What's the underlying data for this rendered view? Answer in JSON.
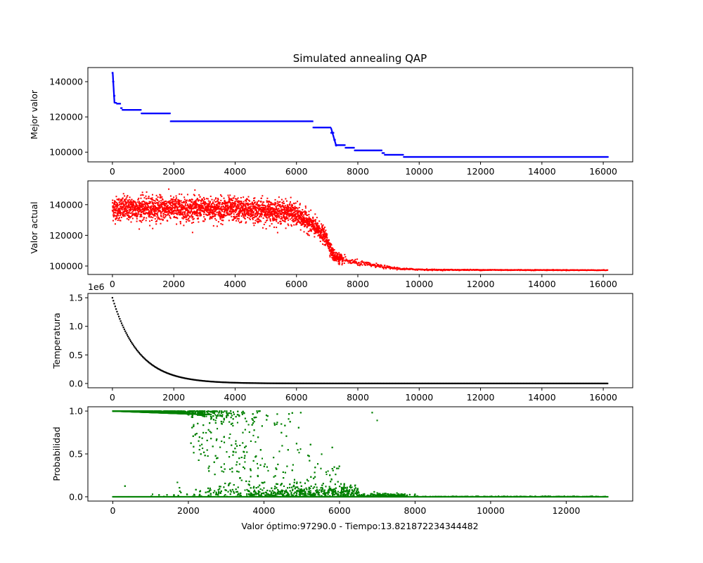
{
  "figure": {
    "title": "Simulated annealing QAP",
    "footer": "Valor óptimo:97290.0 - Tiempo:13.821872234344482"
  },
  "chart_data": [
    {
      "type": "scatter",
      "ylabel": "Mejor valor",
      "color": "#0000ff",
      "xlim": [
        -800,
        16960
      ],
      "ylim": [
        94500,
        148000
      ],
      "xticks": [
        0,
        2000,
        4000,
        6000,
        8000,
        10000,
        12000,
        14000,
        16000
      ],
      "xtick_labels": [
        "0",
        "2000",
        "4000",
        "6000",
        "8000",
        "10000",
        "12000",
        "14000",
        "16000"
      ],
      "yticks": [
        100000,
        120000,
        140000
      ],
      "ytick_labels": [
        "100000",
        "120000",
        "140000"
      ],
      "steps": [
        [
          0,
          145000
        ],
        [
          20,
          140000
        ],
        [
          50,
          132000
        ],
        [
          90,
          128000
        ],
        [
          150,
          127500
        ],
        [
          280,
          125000
        ],
        [
          330,
          124000
        ],
        [
          950,
          122000
        ],
        [
          1900,
          117500
        ],
        [
          6550,
          114000
        ],
        [
          7130,
          111000
        ],
        [
          7230,
          107000
        ],
        [
          7280,
          104000
        ],
        [
          7600,
          102500
        ],
        [
          7900,
          101000
        ],
        [
          8800,
          99500
        ],
        [
          8880,
          98500
        ],
        [
          9500,
          97290
        ],
        [
          16150,
          97290
        ]
      ]
    },
    {
      "type": "scatter",
      "ylabel": "Valor actual",
      "color": "#ff0000",
      "xlim": [
        -800,
        16960
      ],
      "ylim": [
        94500,
        155500
      ],
      "xticks": [
        0,
        2000,
        4000,
        6000,
        8000,
        10000,
        12000,
        14000,
        16000
      ],
      "xtick_labels": [
        "0",
        "2000",
        "4000",
        "6000",
        "8000",
        "10000",
        "12000",
        "14000",
        "16000"
      ],
      "yticks": [
        100000,
        120000,
        140000
      ],
      "ytick_labels": [
        "100000",
        "120000",
        "140000"
      ],
      "envelope": {
        "x": [
          0,
          2000,
          4000,
          5800,
          6300,
          6800,
          7000,
          7200,
          7500,
          8000,
          9000,
          9500,
          10500,
          16150
        ],
        "center": [
          137500,
          137500,
          137000,
          135000,
          130000,
          122000,
          117000,
          107000,
          104000,
          102000,
          99000,
          98000,
          97500,
          97290
        ],
        "spread": [
          7000,
          7000,
          7000,
          6500,
          6000,
          5000,
          4000,
          3500,
          2500,
          1500,
          800,
          500,
          300,
          150
        ]
      }
    },
    {
      "type": "scatter",
      "ylabel": "Temperatura",
      "offset_text": "1e6",
      "color": "#000000",
      "xlim": [
        -800,
        16960
      ],
      "ylim": [
        -0.075,
        1.575
      ],
      "xticks": [
        0,
        2000,
        4000,
        6000,
        8000,
        10000,
        12000,
        14000,
        16000
      ],
      "xtick_labels": [
        "0",
        "2000",
        "4000",
        "6000",
        "8000",
        "10000",
        "12000",
        "14000",
        "16000"
      ],
      "yticks": [
        0.0,
        0.5,
        1.0,
        1.5
      ],
      "ytick_labels": [
        "0.0",
        "0.5",
        "1.0",
        "1.5"
      ],
      "t0": 1.5,
      "decay_per_unit_x": 0.00118,
      "x_max": 16150
    },
    {
      "type": "scatter",
      "ylabel": "Probabilidad",
      "color": "#008000",
      "xlim": [
        -660,
        13760
      ],
      "ylim": [
        -0.05,
        1.05
      ],
      "xticks": [
        0,
        2000,
        4000,
        6000,
        8000,
        10000,
        12000
      ],
      "xtick_labels": [
        "0",
        "2000",
        "4000",
        "6000",
        "8000",
        "10000",
        "12000"
      ],
      "yticks": [
        0.0,
        0.5,
        1.0
      ],
      "ytick_labels": [
        "0.0",
        "0.5",
        "1.0"
      ],
      "x_max": 13100,
      "transition_center": 3200,
      "transition_width": 600
    }
  ]
}
